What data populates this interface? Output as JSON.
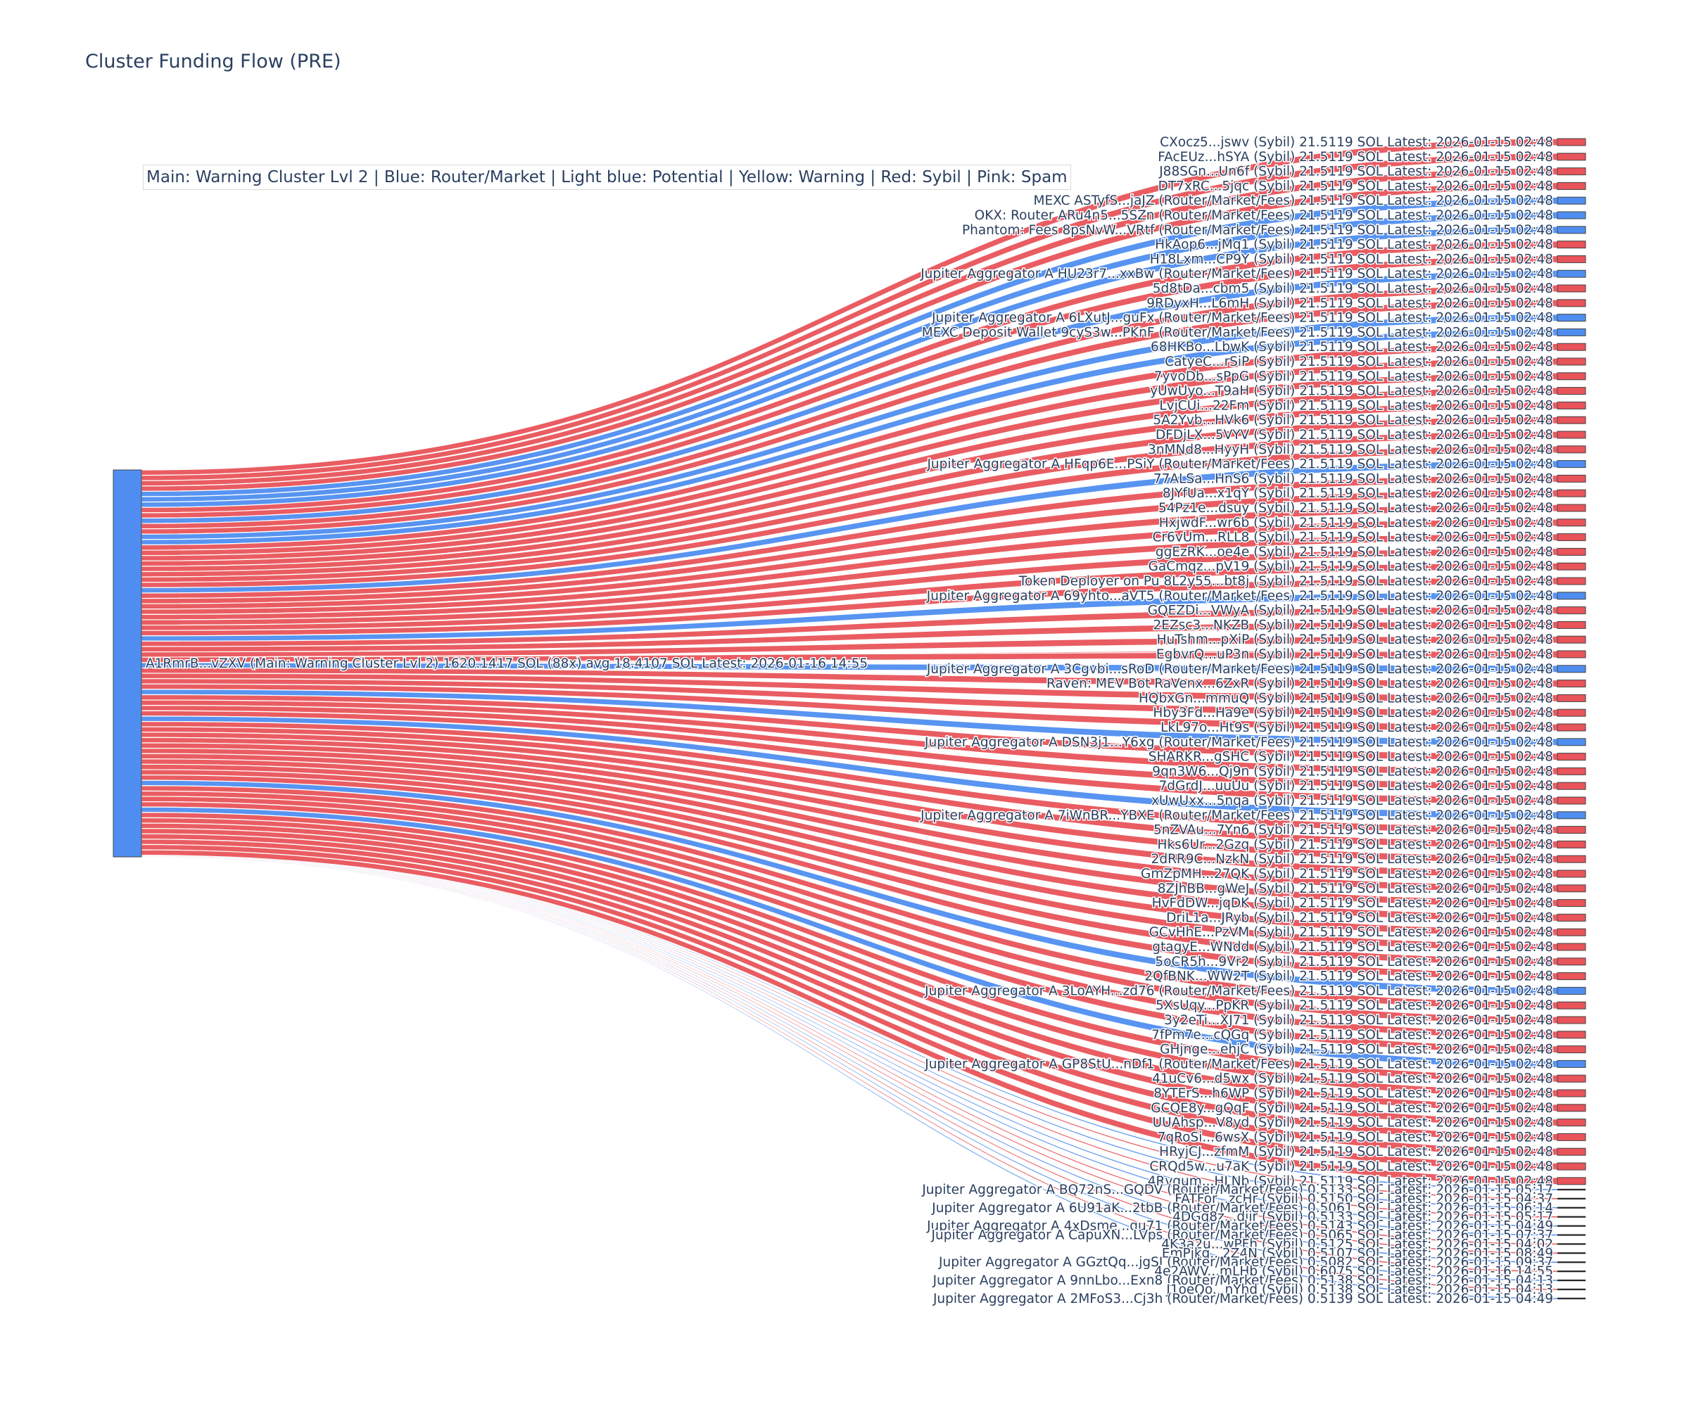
{
  "title": "Cluster Funding Flow (PRE)",
  "legend_text": "Main: Warning Cluster Lvl 2  |  Blue: Router/Market | Light blue: Potential | Yellow: Warning | Red: Sybil | Pink: Spam",
  "colors": {
    "sybil": "#e8545a",
    "router": "#4f8ef0",
    "main": "#4f8ef0",
    "small": "#222222",
    "text": "#2a3f5f"
  },
  "chart_data": {
    "type": "sankey",
    "source": {
      "label": "A1RmrB...vZXV (Main: Warning Cluster Lvl 2) 1620.1417 SOL (88x) avg 18.4107 SOL Latest: 2026-01-16 14:55",
      "category": "main"
    },
    "targets": [
      {
        "label": "CXocz5...jswv (Sybil) 21.5119 SOL Latest: 2026-01-15 02:48",
        "value": 21.5119,
        "category": "sybil"
      },
      {
        "label": "FAcEUz...hSYA (Sybil) 21.5119 SOL Latest: 2026-01-15 02:48",
        "value": 21.5119,
        "category": "sybil"
      },
      {
        "label": "J88SGn...Un6f (Sybil) 21.5119 SOL Latest: 2026-01-15 02:48",
        "value": 21.5119,
        "category": "sybil"
      },
      {
        "label": "DT7xRC...5jqc (Sybil) 21.5119 SOL Latest: 2026-01-15 02:48",
        "value": 21.5119,
        "category": "sybil"
      },
      {
        "label": "MEXC ASTyfS...jaJZ (Router/Market/Fees) 21.5119 SOL Latest: 2026-01-15 02:48",
        "value": 21.5119,
        "category": "router"
      },
      {
        "label": "OKX: Router ARu4n5...5SZn (Router/Market/Fees) 21.5119 SOL Latest: 2026-01-15 02:48",
        "value": 21.5119,
        "category": "router"
      },
      {
        "label": "Phantom: Fees 8psNvW...VRtf (Router/Market/Fees) 21.5119 SOL Latest: 2026-01-15 02:48",
        "value": 21.5119,
        "category": "router"
      },
      {
        "label": "HkAop6...jMq1 (Sybil) 21.5119 SOL Latest: 2026-01-15 02:48",
        "value": 21.5119,
        "category": "sybil"
      },
      {
        "label": "H18Lxm...CP9Y (Sybil) 21.5119 SOL Latest: 2026-01-15 02:48",
        "value": 21.5119,
        "category": "sybil"
      },
      {
        "label": "Jupiter Aggregator A HU23r7...xxBw (Router/Market/Fees) 21.5119 SOL Latest: 2026-01-15 02:48",
        "value": 21.5119,
        "category": "router"
      },
      {
        "label": "5d8tDa...cbm5 (Sybil) 21.5119 SOL Latest: 2026-01-15 02:48",
        "value": 21.5119,
        "category": "sybil"
      },
      {
        "label": "9RDyxH...L6mH (Sybil) 21.5119 SOL Latest: 2026-01-15 02:48",
        "value": 21.5119,
        "category": "sybil"
      },
      {
        "label": "Jupiter Aggregator A 6LXutJ...guFx (Router/Market/Fees) 21.5119 SOL Latest: 2026-01-15 02:48",
        "value": 21.5119,
        "category": "router"
      },
      {
        "label": "MEXC Deposit Wallet 9cyS3w...PKnF (Router/Market/Fees) 21.5119 SOL Latest: 2026-01-15 02:48",
        "value": 21.5119,
        "category": "router"
      },
      {
        "label": "68HKBo...LbwK (Sybil) 21.5119 SOL Latest: 2026-01-15 02:48",
        "value": 21.5119,
        "category": "sybil"
      },
      {
        "label": "CatyeC...rSiP (Sybil) 21.5119 SOL Latest: 2026-01-15 02:48",
        "value": 21.5119,
        "category": "sybil"
      },
      {
        "label": "7yvoDb...sPpG (Sybil) 21.5119 SOL Latest: 2026-01-15 02:48",
        "value": 21.5119,
        "category": "sybil"
      },
      {
        "label": "yUwUyo...T9aH (Sybil) 21.5119 SOL Latest: 2026-01-15 02:48",
        "value": 21.5119,
        "category": "sybil"
      },
      {
        "label": "LvjCUi...22Fm (Sybil) 21.5119 SOL Latest: 2026-01-15 02:48",
        "value": 21.5119,
        "category": "sybil"
      },
      {
        "label": "5A2Yvb...HVk6 (Sybil) 21.5119 SOL Latest: 2026-01-15 02:48",
        "value": 21.5119,
        "category": "sybil"
      },
      {
        "label": "DFDjLX...5VYV (Sybil) 21.5119 SOL Latest: 2026-01-15 02:48",
        "value": 21.5119,
        "category": "sybil"
      },
      {
        "label": "3nMNd8...HyyH (Sybil) 21.5119 SOL Latest: 2026-01-15 02:48",
        "value": 21.5119,
        "category": "sybil"
      },
      {
        "label": "Jupiter Aggregator A HFqp6E...PSiY (Router/Market/Fees) 21.5119 SOL Latest: 2026-01-15 02:48",
        "value": 21.5119,
        "category": "router"
      },
      {
        "label": "77ALSa...HnS6 (Sybil) 21.5119 SOL Latest: 2026-01-15 02:48",
        "value": 21.5119,
        "category": "sybil"
      },
      {
        "label": "8JYfUa...x1qY (Sybil) 21.5119 SOL Latest: 2026-01-15 02:48",
        "value": 21.5119,
        "category": "sybil"
      },
      {
        "label": "54Pz1e...dsuy (Sybil) 21.5119 SOL Latest: 2026-01-15 02:48",
        "value": 21.5119,
        "category": "sybil"
      },
      {
        "label": "HxjwdF...wr6b (Sybil) 21.5119 SOL Latest: 2026-01-15 02:48",
        "value": 21.5119,
        "category": "sybil"
      },
      {
        "label": "Cr6vUm...RLL8 (Sybil) 21.5119 SOL Latest: 2026-01-15 02:48",
        "value": 21.5119,
        "category": "sybil"
      },
      {
        "label": "ggEzRK...oe4e (Sybil) 21.5119 SOL Latest: 2026-01-15 02:48",
        "value": 21.5119,
        "category": "sybil"
      },
      {
        "label": "GaCmqz...pV19 (Sybil) 21.5119 SOL Latest: 2026-01-15 02:48",
        "value": 21.5119,
        "category": "sybil"
      },
      {
        "label": "Token Deployer on Pu 8L2y55...bt8j (Sybil) 21.5119 SOL Latest: 2026-01-15 02:48",
        "value": 21.5119,
        "category": "sybil"
      },
      {
        "label": "Jupiter Aggregator A 69yhto...aVT5 (Router/Market/Fees) 21.5119 SOL Latest: 2026-01-15 02:48",
        "value": 21.5119,
        "category": "router"
      },
      {
        "label": "GQEZDi...VWyA (Sybil) 21.5119 SOL Latest: 2026-01-15 02:48",
        "value": 21.5119,
        "category": "sybil"
      },
      {
        "label": "2EZsc3...NKZB (Sybil) 21.5119 SOL Latest: 2026-01-15 02:48",
        "value": 21.5119,
        "category": "sybil"
      },
      {
        "label": "HuTshm...pXiP (Sybil) 21.5119 SOL Latest: 2026-01-15 02:48",
        "value": 21.5119,
        "category": "sybil"
      },
      {
        "label": "EgbvrQ...uP3n (Sybil) 21.5119 SOL Latest: 2026-01-15 02:48",
        "value": 21.5119,
        "category": "sybil"
      },
      {
        "label": "Jupiter Aggregator A 3Cgvbi...sRoD (Router/Market/Fees) 21.5119 SOL Latest: 2026-01-15 02:48",
        "value": 21.5119,
        "category": "router"
      },
      {
        "label": "Raven: MEV Bot RaVenx...6ZxR (Sybil) 21.5119 SOL Latest: 2026-01-15 02:48",
        "value": 21.5119,
        "category": "sybil"
      },
      {
        "label": "HQbxGn...mmuQ (Sybil) 21.5119 SOL Latest: 2026-01-15 02:48",
        "value": 21.5119,
        "category": "sybil"
      },
      {
        "label": "Hby3Fd...Ha9e (Sybil) 21.5119 SOL Latest: 2026-01-15 02:48",
        "value": 21.5119,
        "category": "sybil"
      },
      {
        "label": "LkL97o...Ht9s (Sybil) 21.5119 SOL Latest: 2026-01-15 02:48",
        "value": 21.5119,
        "category": "sybil"
      },
      {
        "label": "Jupiter Aggregator A DSN3j1...Y6xg (Router/Market/Fees) 21.5119 SOL Latest: 2026-01-15 02:48",
        "value": 21.5119,
        "category": "router"
      },
      {
        "label": "SHARKR...gSHC (Sybil) 21.5119 SOL Latest: 2026-01-15 02:48",
        "value": 21.5119,
        "category": "sybil"
      },
      {
        "label": "9qn3W6...Qj9n (Sybil) 21.5119 SOL Latest: 2026-01-15 02:48",
        "value": 21.5119,
        "category": "sybil"
      },
      {
        "label": "7dGrdJ...uuUu (Sybil) 21.5119 SOL Latest: 2026-01-15 02:48",
        "value": 21.5119,
        "category": "sybil"
      },
      {
        "label": "xUwUxx...5nqa (Sybil) 21.5119 SOL Latest: 2026-01-15 02:48",
        "value": 21.5119,
        "category": "sybil"
      },
      {
        "label": "Jupiter Aggregator A 7iWnBR...YBXE (Router/Market/Fees) 21.5119 SOL Latest: 2026-01-15 02:48",
        "value": 21.5119,
        "category": "router"
      },
      {
        "label": "5nZVAu...7Yn6 (Sybil) 21.5119 SOL Latest: 2026-01-15 02:48",
        "value": 21.5119,
        "category": "sybil"
      },
      {
        "label": "Hks6Ur...2Gzq (Sybil) 21.5119 SOL Latest: 2026-01-15 02:48",
        "value": 21.5119,
        "category": "sybil"
      },
      {
        "label": "2dRR9C...NzkN (Sybil) 21.5119 SOL Latest: 2026-01-15 02:48",
        "value": 21.5119,
        "category": "sybil"
      },
      {
        "label": "GmZpMH...27QK (Sybil) 21.5119 SOL Latest: 2026-01-15 02:48",
        "value": 21.5119,
        "category": "sybil"
      },
      {
        "label": "8ZJhBB...gWeJ (Sybil) 21.5119 SOL Latest: 2026-01-15 02:48",
        "value": 21.5119,
        "category": "sybil"
      },
      {
        "label": "HvFdDW...jqDK (Sybil) 21.5119 SOL Latest: 2026-01-15 02:48",
        "value": 21.5119,
        "category": "sybil"
      },
      {
        "label": "DriL1a...JRyb (Sybil) 21.5119 SOL Latest: 2026-01-15 02:48",
        "value": 21.5119,
        "category": "sybil"
      },
      {
        "label": "GCvHhE...PzVM (Sybil) 21.5119 SOL Latest: 2026-01-15 02:48",
        "value": 21.5119,
        "category": "sybil"
      },
      {
        "label": "gtagyE...WNdd (Sybil) 21.5119 SOL Latest: 2026-01-15 02:48",
        "value": 21.5119,
        "category": "sybil"
      },
      {
        "label": "5oCR5h...9Vr2 (Sybil) 21.5119 SOL Latest: 2026-01-15 02:48",
        "value": 21.5119,
        "category": "sybil"
      },
      {
        "label": "2QfBNK...WW2T (Sybil) 21.5119 SOL Latest: 2026-01-15 02:48",
        "value": 21.5119,
        "category": "sybil"
      },
      {
        "label": "Jupiter Aggregator A 3LoAYH...zd76 (Router/Market/Fees) 21.5119 SOL Latest: 2026-01-15 02:48",
        "value": 21.5119,
        "category": "router"
      },
      {
        "label": "5XsUqy...PpKR (Sybil) 21.5119 SOL Latest: 2026-01-15 02:48",
        "value": 21.5119,
        "category": "sybil"
      },
      {
        "label": "3y2eTi...XJ71 (Sybil) 21.5119 SOL Latest: 2026-01-15 02:48",
        "value": 21.5119,
        "category": "sybil"
      },
      {
        "label": "7fPm7e...cQGq (Sybil) 21.5119 SOL Latest: 2026-01-15 02:48",
        "value": 21.5119,
        "category": "sybil"
      },
      {
        "label": "GHjnge...ehjC (Sybil) 21.5119 SOL Latest: 2026-01-15 02:48",
        "value": 21.5119,
        "category": "sybil"
      },
      {
        "label": "Jupiter Aggregator A GP8StU...nDf1 (Router/Market/Fees) 21.5119 SOL Latest: 2026-01-15 02:48",
        "value": 21.5119,
        "category": "router"
      },
      {
        "label": "41uCv6...d5wx (Sybil) 21.5119 SOL Latest: 2026-01-15 02:48",
        "value": 21.5119,
        "category": "sybil"
      },
      {
        "label": "8YTErS...h6WP (Sybil) 21.5119 SOL Latest: 2026-01-15 02:48",
        "value": 21.5119,
        "category": "sybil"
      },
      {
        "label": "GCQE8y...gQqF (Sybil) 21.5119 SOL Latest: 2026-01-15 02:48",
        "value": 21.5119,
        "category": "sybil"
      },
      {
        "label": "UUAhsp...V8yd (Sybil) 21.5119 SOL Latest: 2026-01-15 02:48",
        "value": 21.5119,
        "category": "sybil"
      },
      {
        "label": "7qRoSi...6wsX (Sybil) 21.5119 SOL Latest: 2026-01-15 02:48",
        "value": 21.5119,
        "category": "sybil"
      },
      {
        "label": "HRyjCJ...zfmM (Sybil) 21.5119 SOL Latest: 2026-01-15 02:48",
        "value": 21.5119,
        "category": "sybil"
      },
      {
        "label": "CRQd5w...u7aK (Sybil) 21.5119 SOL Latest: 2026-01-15 02:48",
        "value": 21.5119,
        "category": "sybil"
      },
      {
        "label": "4Rvgum...HLNb (Sybil) 21.5119 SOL Latest: 2026-01-15 02:48",
        "value": 21.5119,
        "category": "sybil"
      },
      {
        "label": "Jupiter Aggregator A BQ72nS...GQDV (Router/Market/Fees) 0.5133 SOL Latest: 2026-01-15 05:17",
        "value": 0.5133,
        "category": "router"
      },
      {
        "label": "FATFor...zcHr (Sybil) 0.5150 SOL Latest: 2026-01-15 04:37",
        "value": 0.515,
        "category": "sybil"
      },
      {
        "label": "Jupiter Aggregator A 6U91aK...2tbB (Router/Market/Fees) 0.5061 SOL Latest: 2026-01-15 06:14",
        "value": 0.5061,
        "category": "router"
      },
      {
        "label": "4DGq8z...djir (Sybil) 0.5133 SOL Latest: 2026-01-15 05:17",
        "value": 0.5133,
        "category": "sybil"
      },
      {
        "label": "Jupiter Aggregator A 4xDsme...qu71 (Router/Market/Fees) 0.5143 SOL Latest: 2026-01-15 04:49",
        "value": 0.5143,
        "category": "router"
      },
      {
        "label": "Jupiter Aggregator A CapuXN...LVps (Router/Market/Fees) 0.5065 SOL Latest: 2026-01-15 07:37",
        "value": 0.5065,
        "category": "router"
      },
      {
        "label": "4K3a2u...wPFh (Sybil) 0.5125 SOL Latest: 2026-01-15 04:02",
        "value": 0.5125,
        "category": "sybil"
      },
      {
        "label": "EmPjkg...2Z4N (Sybil) 0.5107 SOL Latest: 2026-01-15 08:49",
        "value": 0.5107,
        "category": "sybil"
      },
      {
        "label": "Jupiter Aggregator A GGztQq...jgSJ (Router/Market/Fees) 0.5082 SOL Latest: 2026-01-15 09:37",
        "value": 0.5082,
        "category": "router"
      },
      {
        "label": "4e2AWV...mLHb (Sybil) 0.6075 SOL Latest: 2026-01-16 14:55",
        "value": 0.6075,
        "category": "sybil"
      },
      {
        "label": "Jupiter Aggregator A 9nnLbo...Exn8 (Router/Market/Fees) 0.5138 SOL Latest: 2026-01-15 04:13",
        "value": 0.5138,
        "category": "router"
      },
      {
        "label": "J1oeQo...nYhd (Sybil) 0.5138 SOL Latest: 2026-01-15 04:13",
        "value": 0.5138,
        "category": "sybil"
      },
      {
        "label": "Jupiter Aggregator A 2MFoS3...Cj3h (Router/Market/Fees) 0.5139 SOL Latest: 2026-01-15 04:49",
        "value": 0.5139,
        "category": "router"
      }
    ]
  }
}
